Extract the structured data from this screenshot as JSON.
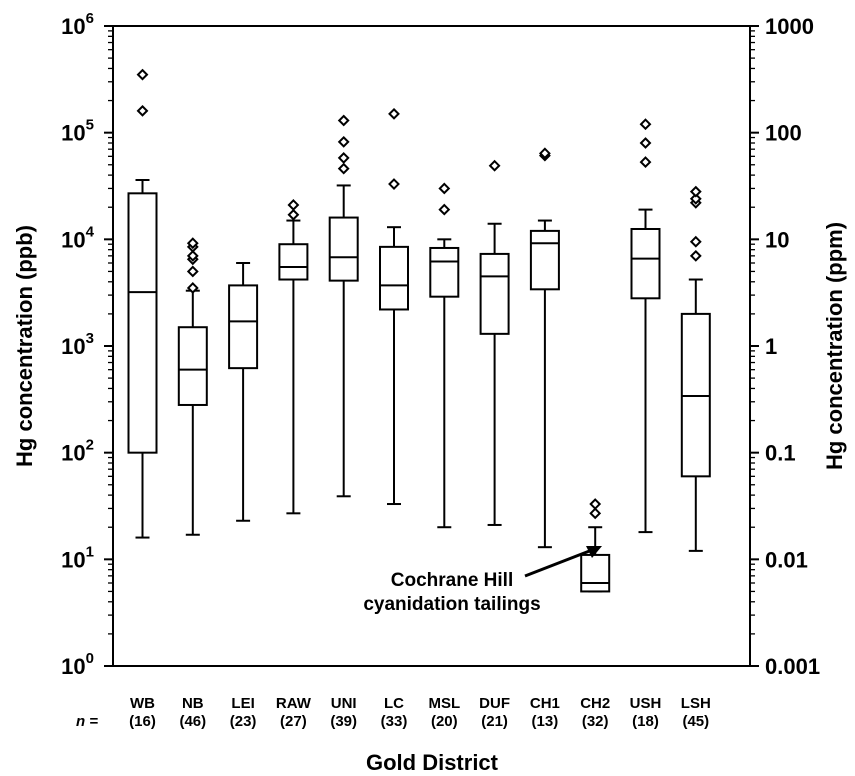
{
  "chart_data": {
    "type": "box",
    "xlabel": "Gold District",
    "ylabel": "Hg concentration (ppb)",
    "ylabel_right": "Hg concentration (ppm)",
    "n_prefix": "n =",
    "yscale": "log",
    "ylim": [
      1,
      1000000
    ],
    "y_ticks": [
      {
        "base": "10",
        "exp": "0"
      },
      {
        "base": "10",
        "exp": "1"
      },
      {
        "base": "10",
        "exp": "2"
      },
      {
        "base": "10",
        "exp": "3"
      },
      {
        "base": "10",
        "exp": "4"
      },
      {
        "base": "10",
        "exp": "5"
      },
      {
        "base": "10",
        "exp": "6"
      }
    ],
    "y_ticks_right": [
      "0.001",
      "0.01",
      "0.1",
      "1",
      "10",
      "100",
      "1000"
    ],
    "annotation": {
      "line1": "Cochrane Hill",
      "line2": "cyanidation tailings"
    },
    "categories": [
      "WB",
      "NB",
      "LEI",
      "RAW",
      "UNI",
      "LC",
      "MSL",
      "DUF",
      "CH1",
      "CH2",
      "USH",
      "LSH"
    ],
    "n": [
      "(16)",
      "(46)",
      "(23)",
      "(27)",
      "(39)",
      "(33)",
      "(20)",
      "(21)",
      "(13)",
      "(32)",
      "(18)",
      "(45)"
    ],
    "boxes": [
      {
        "whisker_low": 16,
        "q1": 100,
        "median": 3200,
        "q3": 27000,
        "whisker_high": 36000,
        "outliers": [
          160000,
          350000
        ]
      },
      {
        "whisker_low": 17,
        "q1": 280,
        "median": 600,
        "q3": 1500,
        "whisker_high": 3300,
        "outliers": [
          3500,
          5000,
          6500,
          7000,
          8500,
          9200
        ]
      },
      {
        "whisker_low": 23,
        "q1": 620,
        "median": 1700,
        "q3": 3700,
        "whisker_high": 6000,
        "outliers": []
      },
      {
        "whisker_low": 27,
        "q1": 4200,
        "median": 5500,
        "q3": 9000,
        "whisker_high": 15000,
        "outliers": [
          17000,
          21000
        ]
      },
      {
        "whisker_low": 39,
        "q1": 4100,
        "median": 6800,
        "q3": 16000,
        "whisker_high": 32000,
        "outliers": [
          46000,
          58000,
          82000,
          130000
        ]
      },
      {
        "whisker_low": 33,
        "q1": 2200,
        "median": 3700,
        "q3": 8500,
        "whisker_high": 13000,
        "outliers": [
          33000,
          150000
        ]
      },
      {
        "whisker_low": 20,
        "q1": 2900,
        "median": 6200,
        "q3": 8300,
        "whisker_high": 10000,
        "outliers": [
          19000,
          30000
        ]
      },
      {
        "whisker_low": 21,
        "q1": 1300,
        "median": 4500,
        "q3": 7300,
        "whisker_high": 14000,
        "outliers": [
          49000
        ]
      },
      {
        "whisker_low": 13,
        "q1": 3400,
        "median": 9200,
        "q3": 12000,
        "whisker_high": 15000,
        "outliers": [
          61000,
          64000
        ]
      },
      {
        "whisker_low": 5,
        "q1": 5,
        "median": 6,
        "q3": 11,
        "whisker_high": 20,
        "outliers": [
          27,
          33
        ]
      },
      {
        "whisker_low": 18,
        "q1": 2800,
        "median": 6600,
        "q3": 12500,
        "whisker_high": 19000,
        "outliers": [
          53000,
          80000,
          120000
        ]
      },
      {
        "whisker_low": 12,
        "q1": 60,
        "median": 340,
        "q3": 2000,
        "whisker_high": 4200,
        "outliers": [
          7000,
          9500,
          22000,
          24000,
          28000
        ]
      }
    ]
  }
}
